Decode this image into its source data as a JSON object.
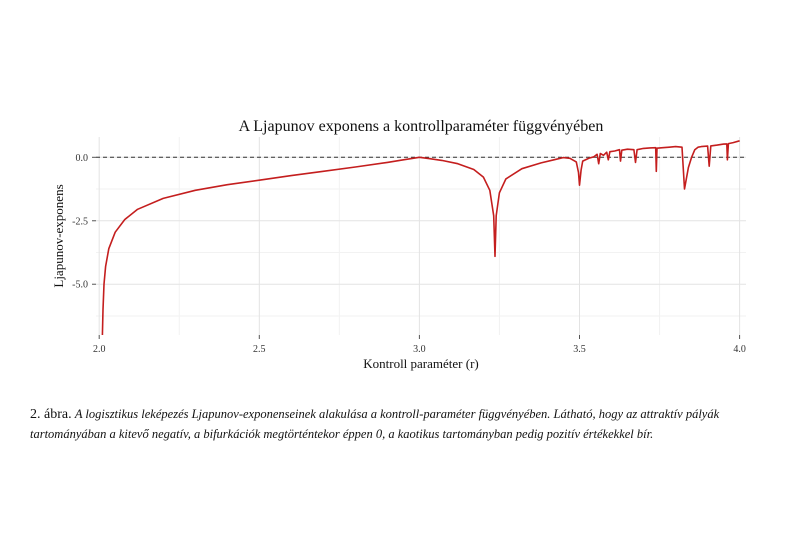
{
  "chart_data": {
    "type": "line",
    "title": "A Ljapunov exponens a kontrollparaméter függvényében",
    "xlabel": "Kontroll paraméter (r)",
    "ylabel": "Ljapunov-exponens",
    "xlim": [
      1.99,
      4.02
    ],
    "ylim": [
      -7.0,
      0.8
    ],
    "xticks": [
      "2.0",
      "2.5",
      "3.0",
      "3.5",
      "4.0"
    ],
    "yticks": [
      "0.0",
      "-2.5",
      "-5.0"
    ],
    "reference_line": {
      "y": 0,
      "style": "dashed"
    },
    "grid": true,
    "series": [
      {
        "color": "#c41e1e",
        "points": [
          [
            2.01,
            -7.0
          ],
          [
            2.012,
            -6.0
          ],
          [
            2.015,
            -5.0
          ],
          [
            2.02,
            -4.3
          ],
          [
            2.03,
            -3.6
          ],
          [
            2.05,
            -2.95
          ],
          [
            2.08,
            -2.45
          ],
          [
            2.12,
            -2.05
          ],
          [
            2.2,
            -1.62
          ],
          [
            2.3,
            -1.3
          ],
          [
            2.4,
            -1.08
          ],
          [
            2.5,
            -0.9
          ],
          [
            2.6,
            -0.72
          ],
          [
            2.7,
            -0.55
          ],
          [
            2.8,
            -0.38
          ],
          [
            2.9,
            -0.2
          ],
          [
            2.95,
            -0.1
          ],
          [
            2.98,
            -0.04
          ],
          [
            3.0,
            0.0
          ],
          [
            3.03,
            -0.05
          ],
          [
            3.07,
            -0.12
          ],
          [
            3.12,
            -0.25
          ],
          [
            3.17,
            -0.48
          ],
          [
            3.2,
            -0.78
          ],
          [
            3.22,
            -1.3
          ],
          [
            3.232,
            -2.3
          ],
          [
            3.236,
            -3.9
          ],
          [
            3.24,
            -2.3
          ],
          [
            3.25,
            -1.4
          ],
          [
            3.27,
            -0.85
          ],
          [
            3.32,
            -0.45
          ],
          [
            3.38,
            -0.22
          ],
          [
            3.42,
            -0.1
          ],
          [
            3.449,
            -0.01
          ],
          [
            3.47,
            -0.04
          ],
          [
            3.49,
            -0.18
          ],
          [
            3.497,
            -0.6
          ],
          [
            3.5,
            -1.1
          ],
          [
            3.505,
            -0.5
          ],
          [
            3.51,
            -0.15
          ],
          [
            3.53,
            -0.03
          ],
          [
            3.545,
            0.02
          ],
          [
            3.555,
            0.12
          ],
          [
            3.56,
            -0.25
          ],
          [
            3.565,
            0.15
          ],
          [
            3.575,
            0.08
          ],
          [
            3.585,
            0.2
          ],
          [
            3.59,
            -0.1
          ],
          [
            3.595,
            0.22
          ],
          [
            3.61,
            0.25
          ],
          [
            3.625,
            0.3
          ],
          [
            3.628,
            -0.15
          ],
          [
            3.632,
            0.28
          ],
          [
            3.65,
            0.32
          ],
          [
            3.67,
            0.3
          ],
          [
            3.675,
            -0.2
          ],
          [
            3.68,
            0.3
          ],
          [
            3.7,
            0.35
          ],
          [
            3.72,
            0.37
          ],
          [
            3.738,
            0.38
          ],
          [
            3.74,
            -0.55
          ],
          [
            3.742,
            0.36
          ],
          [
            3.76,
            0.38
          ],
          [
            3.78,
            0.4
          ],
          [
            3.8,
            0.42
          ],
          [
            3.82,
            0.4
          ],
          [
            3.828,
            -1.25
          ],
          [
            3.84,
            -0.4
          ],
          [
            3.85,
            0.0
          ],
          [
            3.86,
            0.3
          ],
          [
            3.87,
            0.4
          ],
          [
            3.88,
            0.42
          ],
          [
            3.9,
            0.44
          ],
          [
            3.905,
            -0.35
          ],
          [
            3.91,
            0.45
          ],
          [
            3.93,
            0.48
          ],
          [
            3.95,
            0.52
          ],
          [
            3.96,
            0.53
          ],
          [
            3.962,
            -0.1
          ],
          [
            3.965,
            0.54
          ],
          [
            3.98,
            0.58
          ],
          [
            4.0,
            0.65
          ]
        ]
      }
    ]
  },
  "caption": {
    "label": "2. ábra.",
    "text": "A logisztikus leképezés Ljapunov-exponenseinek alakulása a kontroll-paraméter függvényében. Látható, hogy az attraktív pályák tartományában a kitevő negatív, a bifurkációk megtörténtekor éppen 0, a kaotikus tartományban pedig pozitív értékekkel bír."
  }
}
